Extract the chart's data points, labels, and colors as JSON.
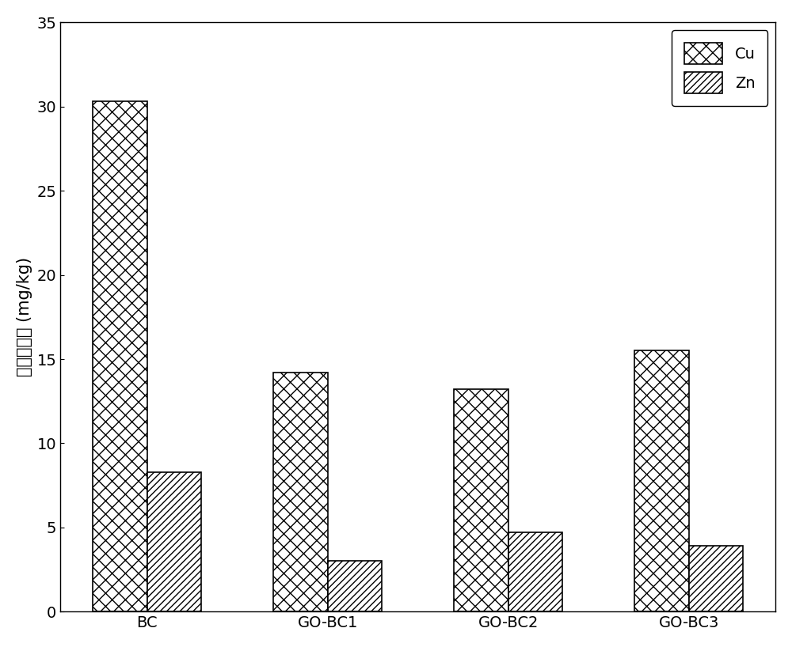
{
  "categories": [
    "BC",
    "GO-BC1",
    "GO-BC2",
    "GO-BC3"
  ],
  "cu_values": [
    30.3,
    14.2,
    13.2,
    15.5
  ],
  "zn_values": [
    8.3,
    3.0,
    4.7,
    3.9
  ],
  "ylabel": "重金属浓度 (mg/kg)",
  "ylim": [
    0,
    35
  ],
  "yticks": [
    0,
    5,
    10,
    15,
    20,
    25,
    30,
    35
  ],
  "bar_width": 0.3,
  "cu_color": "#ffffff",
  "zn_color": "#ffffff",
  "cu_hatch": "xx",
  "zn_hatch": "////",
  "legend_labels": [
    "Cu",
    "Zn"
  ],
  "background_color": "#ffffff",
  "edge_color": "#000000",
  "figsize": [
    10.0,
    8.18
  ],
  "dpi": 100
}
